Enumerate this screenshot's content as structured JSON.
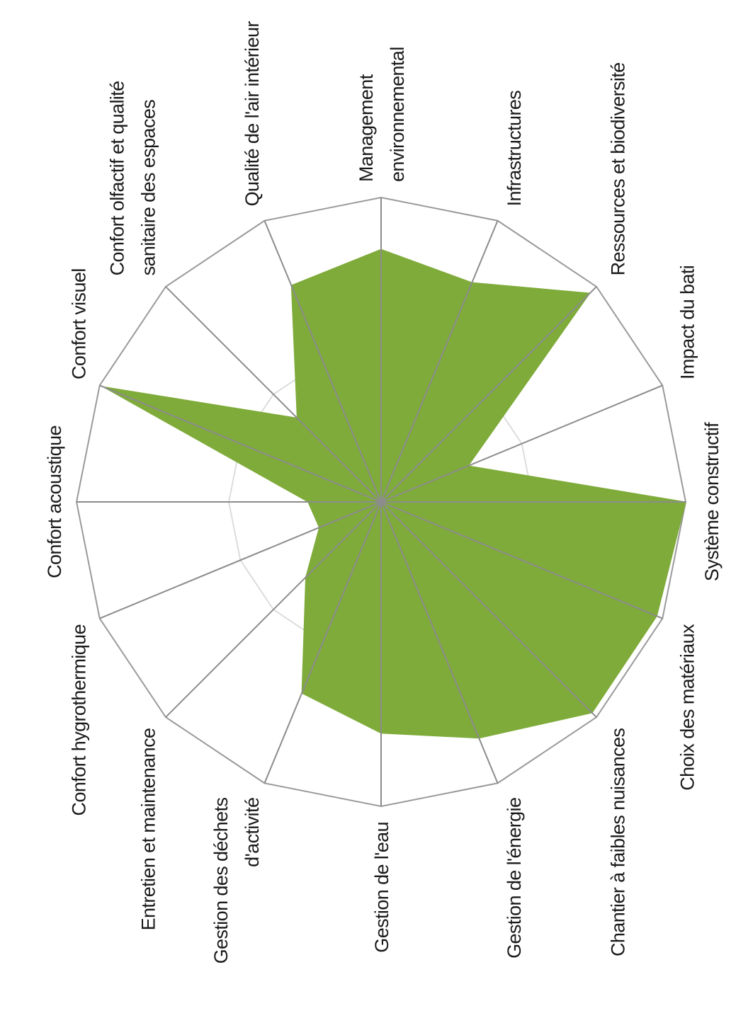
{
  "chart_data": {
    "type": "radar",
    "categories": [
      "Système constructif",
      "Choix des matériaux",
      "Chantier à faibles nuisances",
      "Gestion de l'énergie",
      "Gestion de l'eau",
      "Gestion des déchets d'activité",
      "Entretien et maintenance",
      "Confort hygrothermique",
      "Confort acoustique",
      "Confort visuel",
      "Confort olfactif et qualité sanitaire des espaces",
      "Qualité de l'air intérieur",
      "Management environnemental",
      "Infrastructures",
      "Ressources et biodiversité",
      "Impact du bati"
    ],
    "label_lines": [
      [
        "Système constructif"
      ],
      [
        "Choix des matériaux"
      ],
      [
        "Chantier à faibles nuisances"
      ],
      [
        "Gestion de l'énergie"
      ],
      [
        "Gestion de l'eau"
      ],
      [
        "Gestion des déchets",
        "d'activité"
      ],
      [
        "Entretien et maintenance"
      ],
      [
        "Confort hygrothermique"
      ],
      [
        "Confort acoustique"
      ],
      [
        "Confort visuel"
      ],
      [
        "Confort olfactif et qualité",
        "sanitaire des espaces"
      ],
      [
        "Qualité de l'air intérieur"
      ],
      [
        "Management",
        "environnemental"
      ],
      [
        "Infrastructures"
      ],
      [
        "Ressources et biodiversité"
      ],
      [
        "Impact du bati"
      ]
    ],
    "series": [
      {
        "values": [
          1.0,
          0.98,
          0.98,
          0.84,
          0.76,
          0.68,
          0.35,
          0.22,
          0.24,
          0.99,
          0.39,
          0.77,
          0.83,
          0.78,
          0.97,
          0.31
        ]
      }
    ],
    "rlim": [
      0,
      1
    ],
    "grid": true,
    "grid_rings": [
      0.5,
      1.0
    ],
    "legend": "none",
    "orientation": "rotated 90° counter-clockwise",
    "colors": {
      "fill": "#7fab3a",
      "axis": "#8c8c8c",
      "outer_ring": "#9a9a9a",
      "inner_ring": "#d9d9d9",
      "text": "#1a1a1a"
    }
  }
}
